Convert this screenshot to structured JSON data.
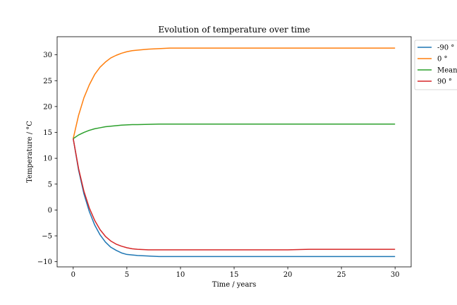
{
  "chart_data": {
    "type": "line",
    "title": "Evolution of temperature over time",
    "xlabel": "Time / years",
    "ylabel": "Temperature / $^\\circ C$",
    "ylabel_display": "Temperature / °C",
    "xlim": [
      -1.5,
      31.5
    ],
    "ylim": [
      -11.0,
      33.5
    ],
    "xticks": [
      0,
      5,
      10,
      15,
      20,
      25,
      30
    ],
    "xtick_labels": [
      "0",
      "5",
      "10",
      "15",
      "20",
      "25",
      "30"
    ],
    "yticks": [
      -10,
      -5,
      0,
      5,
      10,
      15,
      20,
      25,
      30
    ],
    "ytick_labels": [
      "−10",
      "−5",
      "0",
      "5",
      "10",
      "15",
      "20",
      "25",
      "30"
    ],
    "grid": false,
    "legend_position": "outside-top-right",
    "x": [
      0,
      0.5,
      1,
      1.5,
      2,
      2.5,
      3,
      3.5,
      4,
      4.5,
      5,
      5.5,
      6,
      7,
      8,
      9,
      10,
      12,
      14,
      16,
      18,
      20,
      22,
      24,
      26,
      28,
      30
    ],
    "series": [
      {
        "name": "-90 °",
        "color": "#1f77b4",
        "values": [
          13.8,
          7.7,
          3.1,
          -0.3,
          -2.9,
          -4.8,
          -6.2,
          -7.2,
          -7.8,
          -8.3,
          -8.6,
          -8.7,
          -8.8,
          -8.9,
          -9.0,
          -9.0,
          -9.0,
          -9.0,
          -9.0,
          -9.0,
          -9.0,
          -9.0,
          -9.0,
          -9.0,
          -9.0,
          -9.0,
          -9.0
        ]
      },
      {
        "name": "0 °",
        "color": "#ff7f0e",
        "values": [
          13.8,
          18.3,
          21.7,
          24.2,
          26.2,
          27.6,
          28.6,
          29.4,
          29.9,
          30.3,
          30.6,
          30.8,
          30.9,
          31.1,
          31.2,
          31.3,
          31.3,
          31.3,
          31.3,
          31.3,
          31.3,
          31.3,
          31.3,
          31.3,
          31.3,
          31.3,
          31.3
        ]
      },
      {
        "name": "Mean",
        "color": "#2ca02c",
        "values": [
          13.8,
          14.5,
          15.0,
          15.4,
          15.7,
          15.9,
          16.1,
          16.2,
          16.3,
          16.4,
          16.45,
          16.5,
          16.5,
          16.55,
          16.6,
          16.6,
          16.6,
          16.6,
          16.6,
          16.6,
          16.6,
          16.6,
          16.6,
          16.6,
          16.6,
          16.6,
          16.6
        ]
      },
      {
        "name": "90 °",
        "color": "#d62728",
        "values": [
          13.8,
          8.0,
          3.6,
          0.4,
          -2.0,
          -3.8,
          -5.1,
          -6.0,
          -6.6,
          -7.0,
          -7.3,
          -7.5,
          -7.6,
          -7.7,
          -7.7,
          -7.7,
          -7.7,
          -7.7,
          -7.7,
          -7.7,
          -7.7,
          -7.7,
          -7.6,
          -7.6,
          -7.6,
          -7.6,
          -7.6
        ]
      }
    ]
  }
}
